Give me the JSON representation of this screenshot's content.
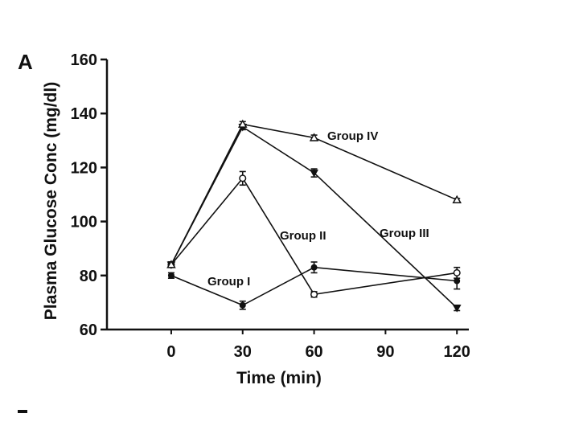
{
  "chart_data": {
    "type": "line",
    "panel_label": "A",
    "title": "",
    "xlabel": "Time (min)",
    "ylabel": "Plasma Glucose Conc (mg/dl)",
    "x": [
      0,
      30,
      60,
      90,
      120
    ],
    "x_ticks": [
      "0",
      "30",
      "60",
      "90",
      "120"
    ],
    "y_ticks": [
      "60",
      "80",
      "100",
      "120",
      "140",
      "160"
    ],
    "xlim": [
      -27,
      125
    ],
    "ylim": [
      60,
      160
    ],
    "grid": false,
    "series": [
      {
        "name": "Group I",
        "marker": "filled-circle",
        "x": [
          0,
          30,
          60,
          120
        ],
        "values": [
          80,
          69,
          83,
          78
        ],
        "errors": [
          1,
          1.5,
          2,
          3
        ]
      },
      {
        "name": "Group II",
        "marker": "open-circle",
        "x": [
          0,
          30,
          60,
          120
        ],
        "values": [
          84,
          116,
          73,
          81
        ],
        "errors": [
          1,
          2.5,
          1,
          2
        ]
      },
      {
        "name": "Group III",
        "marker": "filled-triangle",
        "x": [
          0,
          30,
          60,
          120
        ],
        "values": [
          84,
          135,
          118,
          68
        ],
        "errors": [
          1,
          1,
          1.5,
          1
        ]
      },
      {
        "name": "Group IV",
        "marker": "open-triangle",
        "x": [
          0,
          30,
          60,
          120
        ],
        "values": [
          84,
          136,
          131,
          108
        ],
        "errors": [
          1,
          1,
          1,
          0.5
        ]
      }
    ]
  }
}
